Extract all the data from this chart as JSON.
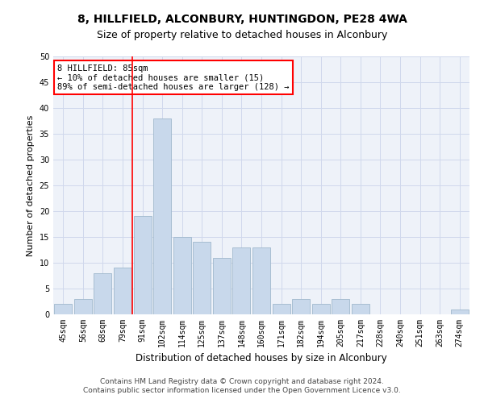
{
  "title1": "8, HILLFIELD, ALCONBURY, HUNTINGDON, PE28 4WA",
  "title2": "Size of property relative to detached houses in Alconbury",
  "xlabel": "Distribution of detached houses by size in Alconbury",
  "ylabel": "Number of detached properties",
  "categories": [
    "45sqm",
    "56sqm",
    "68sqm",
    "79sqm",
    "91sqm",
    "102sqm",
    "114sqm",
    "125sqm",
    "137sqm",
    "148sqm",
    "160sqm",
    "171sqm",
    "182sqm",
    "194sqm",
    "205sqm",
    "217sqm",
    "228sqm",
    "240sqm",
    "251sqm",
    "263sqm",
    "274sqm"
  ],
  "values": [
    2,
    3,
    8,
    9,
    19,
    38,
    15,
    14,
    11,
    13,
    13,
    2,
    3,
    2,
    3,
    2,
    0,
    0,
    0,
    0,
    1
  ],
  "bar_color": "#c8d8eb",
  "bar_edge_color": "#a0b8cc",
  "red_line_x": 3.5,
  "ylim": [
    0,
    50
  ],
  "yticks": [
    0,
    5,
    10,
    15,
    20,
    25,
    30,
    35,
    40,
    45,
    50
  ],
  "footer1": "Contains HM Land Registry data © Crown copyright and database right 2024.",
  "footer2": "Contains public sector information licensed under the Open Government Licence v3.0.",
  "grid_color": "#d0d8ec",
  "bg_color": "#eef2f9",
  "ann_line1": "8 HILLFIELD: 85sqm",
  "ann_line2": "← 10% of detached houses are smaller (15)",
  "ann_line3": "89% of semi-detached houses are larger (128) →",
  "title1_fontsize": 10,
  "title2_fontsize": 9,
  "ylabel_fontsize": 8,
  "xlabel_fontsize": 8.5,
  "tick_fontsize": 7,
  "ann_fontsize": 7.5,
  "footer_fontsize": 6.5
}
